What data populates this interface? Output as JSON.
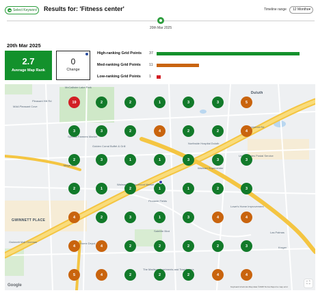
{
  "header": {
    "select_keyword_label": "Select Keyword",
    "results_title": "Results for: 'Fitness center'",
    "timeline_range_label": "Timeline range",
    "timeline_range_value": "12 Months",
    "timeline_date": "20th Mar 2025"
  },
  "summary": {
    "date_heading": "20th Mar 2025",
    "avg_map_rank_value": "2.7",
    "avg_map_rank_label": "Average Map Rank",
    "change_value": "0",
    "change_label": "Change"
  },
  "grid_stats": [
    {
      "label": "High-ranking Grid Points",
      "count": "37",
      "fraction": 0.91,
      "color": "#13912c"
    },
    {
      "label": "Med-ranking Grid Points",
      "count": "11",
      "fraction": 0.27,
      "color": "#c9640e"
    },
    {
      "label": "Low-ranking Grid Points",
      "count": "1",
      "fraction": 0.025,
      "color": "#d21f25"
    }
  ],
  "map": {
    "grid": [
      [
        "19",
        "2",
        "2",
        "1",
        "3",
        "3",
        "5"
      ],
      [
        "3",
        "3",
        "2",
        "4",
        "2",
        "2",
        "4"
      ],
      [
        "2",
        "3",
        "1",
        "1",
        "3",
        "3",
        "3"
      ],
      [
        "2",
        "1",
        "2",
        "1",
        "1",
        "2",
        "3"
      ],
      [
        "4",
        "2",
        "3",
        "1",
        "3",
        "4",
        "4"
      ],
      [
        "4",
        "4",
        "2",
        "2",
        "2",
        "2",
        "3"
      ],
      [
        "5",
        "4",
        "2",
        "2",
        "2",
        "4",
        "4"
      ]
    ],
    "labels": [
      "McCallister Lake Park",
      "MAA Pleasant Cove",
      "Sprouts Farmers Market",
      "Golden Corral Buffet & Grill",
      "Mega Mart",
      "GWINNETT PLACE",
      "Duluth",
      "Northside Hospital Duluth",
      "United States Postal Service",
      "Walmart Supercenter",
      "Walmart Neighborhood Market",
      "The Madison Apartments and Townhomes",
      "Pleasant Hill Rd",
      "Satellite Blvd",
      "Shackleford Rd",
      "Pinnacle Fields",
      "Gwinnett Mall Cinemas",
      "Home Depot",
      "Lowe's Home Improvement",
      "Las Palmas",
      "Kroger"
    ],
    "google_logo": "Google",
    "attribution": "Keyboard shortcuts   Map data ©2025   Terms   Report a map error"
  }
}
